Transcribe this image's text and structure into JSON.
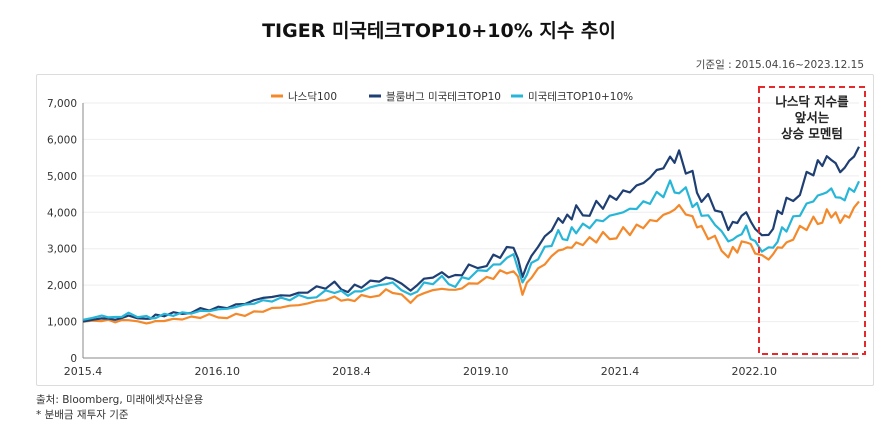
{
  "title": "TIGER 미국테크TOP10+10% 지수 추이",
  "period": "기준일 : 2015.04.16~2023.12.15",
  "source": "출처: Bloomberg, 미래에셋자산운용",
  "note": "* 분배금 재투자 기준",
  "annotation": {
    "line1": "나스닥 지수를",
    "line2": "앞서는",
    "line3": "상승 모멘텀",
    "color": "#e8282b"
  },
  "chart_data": {
    "type": "line",
    "title": "TIGER 미국테크TOP10+10% 지수 추이",
    "xlabel": "",
    "ylabel": "",
    "ylim": [
      0,
      7000
    ],
    "yticks": [
      "0",
      "1,000",
      "2,000",
      "3,000",
      "4,000",
      "5,000",
      "6,000",
      "7,000"
    ],
    "xticks": [
      "2015.4",
      "2016.10",
      "2018.4",
      "2019.10",
      "2021.4",
      "2022.10"
    ],
    "x_tick_positions": [
      2015.29,
      2016.79,
      2018.29,
      2019.79,
      2021.29,
      2022.79
    ],
    "xlim": [
      2015.29,
      2023.96
    ],
    "legend_position": "top-center",
    "series": [
      {
        "name": "나스닥100",
        "color": "#f4892b",
        "x": [
          2015.29,
          2015.5,
          2015.65,
          2015.8,
          2016.0,
          2016.1,
          2016.3,
          2016.5,
          2016.7,
          2016.9,
          2017.1,
          2017.3,
          2017.5,
          2017.7,
          2017.9,
          2018.1,
          2018.25,
          2018.4,
          2018.6,
          2018.75,
          2018.95,
          2019.1,
          2019.3,
          2019.45,
          2019.6,
          2019.8,
          2019.95,
          2020.1,
          2020.2,
          2020.3,
          2020.45,
          2020.6,
          2020.7,
          2020.8,
          2020.95,
          2021.1,
          2021.25,
          2021.4,
          2021.55,
          2021.7,
          2021.85,
          2021.95,
          2022.1,
          2022.2,
          2022.35,
          2022.5,
          2022.6,
          2022.7,
          2022.8,
          2022.95,
          2023.05,
          2023.15,
          2023.3,
          2023.45,
          2023.55,
          2023.65,
          2023.75,
          2023.85,
          2023.96
        ],
        "values": [
          1000,
          1050,
          1000,
          1050,
          950,
          1000,
          1050,
          1100,
          1150,
          1150,
          1200,
          1300,
          1400,
          1450,
          1550,
          1650,
          1550,
          1650,
          1800,
          1850,
          1550,
          1800,
          1900,
          1850,
          2000,
          2150,
          2300,
          2500,
          1800,
          2250,
          2600,
          2950,
          3000,
          3100,
          3200,
          3300,
          3450,
          3500,
          3650,
          3800,
          4000,
          4150,
          3800,
          3500,
          3200,
          2900,
          3000,
          3250,
          2900,
          2700,
          3000,
          3100,
          3500,
          3700,
          3900,
          4000,
          3800,
          3900,
          4300
        ]
      },
      {
        "name": "블룸버그 미국테크TOP10",
        "color": "#1f3f73",
        "x": [
          2015.29,
          2015.5,
          2015.65,
          2015.8,
          2016.0,
          2016.1,
          2016.3,
          2016.5,
          2016.7,
          2016.9,
          2017.1,
          2017.3,
          2017.5,
          2017.7,
          2017.9,
          2018.1,
          2018.25,
          2018.4,
          2018.6,
          2018.75,
          2018.95,
          2019.1,
          2019.3,
          2019.45,
          2019.6,
          2019.8,
          2019.95,
          2020.1,
          2020.2,
          2020.3,
          2020.45,
          2020.6,
          2020.7,
          2020.8,
          2020.95,
          2021.1,
          2021.25,
          2021.4,
          2021.55,
          2021.7,
          2021.85,
          2021.95,
          2022.1,
          2022.2,
          2022.35,
          2022.5,
          2022.6,
          2022.7,
          2022.8,
          2022.95,
          2023.05,
          2023.15,
          2023.3,
          2023.45,
          2023.55,
          2023.65,
          2023.75,
          2023.85,
          2023.96
        ],
        "values": [
          1000,
          1100,
          1050,
          1150,
          1050,
          1150,
          1200,
          1300,
          1350,
          1400,
          1500,
          1650,
          1700,
          1750,
          1900,
          2000,
          1900,
          2000,
          2150,
          2200,
          1850,
          2150,
          2300,
          2200,
          2450,
          2650,
          2850,
          3100,
          2250,
          2800,
          3300,
          3750,
          3800,
          4000,
          4100,
          4250,
          4450,
          4600,
          4800,
          5100,
          5400,
          5500,
          4900,
          4500,
          4200,
          3600,
          3750,
          4000,
          3500,
          3300,
          3900,
          4200,
          4700,
          5200,
          5400,
          5500,
          5100,
          5350,
          5800
        ]
      },
      {
        "name": "미국테크TOP10+10%",
        "color": "#27b6d8",
        "x": [
          2015.29,
          2015.5,
          2015.65,
          2015.8,
          2016.0,
          2016.1,
          2016.3,
          2016.5,
          2016.7,
          2016.9,
          2017.1,
          2017.3,
          2017.5,
          2017.7,
          2017.9,
          2018.1,
          2018.25,
          2018.4,
          2018.6,
          2018.75,
          2018.95,
          2019.1,
          2019.3,
          2019.45,
          2019.6,
          2019.8,
          2019.95,
          2020.1,
          2020.2,
          2020.3,
          2020.45,
          2020.6,
          2020.7,
          2020.8,
          2020.95,
          2021.1,
          2021.25,
          2021.4,
          2021.55,
          2021.7,
          2021.85,
          2021.95,
          2022.1,
          2022.2,
          2022.35,
          2022.5,
          2022.6,
          2022.7,
          2022.8,
          2022.95,
          2023.05,
          2023.15,
          2023.3,
          2023.45,
          2023.55,
          2023.65,
          2023.75,
          2023.85,
          2023.96
        ],
        "values": [
          1050,
          1150,
          1100,
          1200,
          1100,
          1150,
          1200,
          1250,
          1300,
          1350,
          1450,
          1550,
          1600,
          1650,
          1750,
          1850,
          1750,
          1850,
          2000,
          2050,
          1700,
          2000,
          2150,
          2050,
          2250,
          2450,
          2600,
          2850,
          2050,
          2550,
          2950,
          3350,
          3400,
          3550,
          3650,
          3800,
          3950,
          4050,
          4200,
          4400,
          4650,
          4750,
          4300,
          4000,
          3700,
          3200,
          3300,
          3550,
          3100,
          2900,
          3350,
          3600,
          4000,
          4350,
          4500,
          4600,
          4300,
          4500,
          4850
        ]
      }
    ]
  }
}
